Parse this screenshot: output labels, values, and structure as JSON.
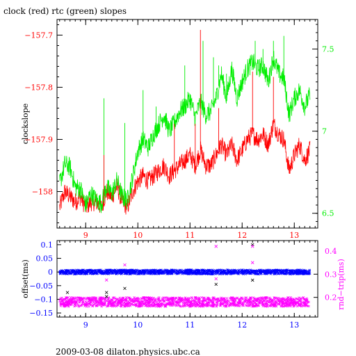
{
  "title": "clock (red) rtc (green) slopes",
  "footer": "2009-03-08 dilaton.physics.ubc.ca",
  "colors": {
    "red": "#ff0000",
    "green": "#00ee00",
    "blue": "#0000ff",
    "magenta": "#ff00ff",
    "axis": "#000000"
  },
  "chart_data": [
    {
      "type": "line",
      "ylabel": "clockslope",
      "xlim": [
        8.45,
        13.45
      ],
      "x_ticks": [
        9,
        10,
        11,
        12,
        13
      ],
      "x_tick_labels": [
        "9",
        "10",
        "11",
        "12",
        "13"
      ],
      "y_left": {
        "lim": [
          -158.07,
          -157.67
        ],
        "ticks": [
          -157.7,
          -157.8,
          -157.9,
          -158
        ],
        "tick_labels": [
          "−157.7",
          "−157.8",
          "−157.9",
          "−158"
        ]
      },
      "y_right": {
        "lim": [
          6.41,
          7.68
        ],
        "ticks": [
          6.5,
          7,
          7.5
        ],
        "tick_labels": [
          "6.5",
          "7",
          "7.5"
        ]
      },
      "series": [
        {
          "name": "clock (red)",
          "axis": "left",
          "color": "#ff0000",
          "x": [
            8.5,
            8.6,
            8.7,
            8.8,
            8.9,
            9.0,
            9.1,
            9.2,
            9.3,
            9.4,
            9.5,
            9.6,
            9.7,
            9.8,
            9.9,
            10.0,
            10.1,
            10.2,
            10.3,
            10.4,
            10.5,
            10.6,
            10.7,
            10.8,
            10.9,
            11.0,
            11.1,
            11.2,
            11.3,
            11.4,
            11.5,
            11.6,
            11.7,
            11.8,
            11.9,
            12.0,
            12.1,
            12.2,
            12.3,
            12.4,
            12.5,
            12.6,
            12.7,
            12.8,
            12.9,
            13.0,
            13.1,
            13.2,
            13.3
          ],
          "values": [
            -158.03,
            -158.0,
            -158.01,
            -158.02,
            -158.01,
            -158.03,
            -158.02,
            -158.02,
            -158.03,
            -158.0,
            -158.01,
            -157.99,
            -158.02,
            -158.03,
            -158.0,
            -157.98,
            -157.97,
            -157.98,
            -157.97,
            -157.96,
            -157.95,
            -157.97,
            -157.96,
            -157.95,
            -157.94,
            -157.93,
            -157.95,
            -157.92,
            -157.95,
            -157.95,
            -157.93,
            -157.91,
            -157.93,
            -157.91,
            -157.94,
            -157.92,
            -157.9,
            -157.89,
            -157.9,
            -157.89,
            -157.91,
            -157.87,
            -157.89,
            -157.9,
            -157.96,
            -157.93,
            -157.91,
            -157.94,
            -157.92
          ]
        },
        {
          "name": "rtc (green)",
          "axis": "right",
          "color": "#00ee00",
          "x": [
            8.5,
            8.6,
            8.7,
            8.8,
            8.9,
            9.0,
            9.1,
            9.2,
            9.3,
            9.4,
            9.5,
            9.6,
            9.7,
            9.8,
            9.9,
            10.0,
            10.1,
            10.2,
            10.3,
            10.4,
            10.5,
            10.6,
            10.7,
            10.8,
            10.9,
            11.0,
            11.1,
            11.2,
            11.3,
            11.4,
            11.5,
            11.6,
            11.7,
            11.8,
            11.9,
            12.0,
            12.1,
            12.2,
            12.3,
            12.4,
            12.5,
            12.6,
            12.7,
            12.8,
            12.9,
            13.0,
            13.1,
            13.2,
            13.3
          ],
          "values": [
            6.68,
            6.8,
            6.78,
            6.66,
            6.65,
            6.55,
            6.62,
            6.58,
            6.56,
            6.66,
            6.62,
            6.7,
            6.6,
            6.58,
            6.72,
            6.88,
            6.95,
            6.9,
            6.98,
            7.04,
            7.1,
            7.0,
            7.05,
            7.12,
            7.15,
            7.2,
            7.08,
            7.18,
            7.1,
            7.12,
            7.2,
            7.35,
            7.2,
            7.38,
            7.2,
            7.3,
            7.38,
            7.42,
            7.38,
            7.4,
            7.3,
            7.45,
            7.35,
            7.32,
            7.1,
            7.2,
            7.25,
            7.15,
            7.22
          ]
        }
      ],
      "spikes": [
        {
          "series": "rtc (green)",
          "x": [
            9.35,
            9.75,
            10.1,
            10.35,
            10.9,
            11.25,
            11.45,
            11.55,
            11.7,
            12.25,
            12.4,
            12.6,
            12.8
          ],
          "values": [
            7.2,
            7.05,
            7.25,
            7.15,
            7.4,
            7.55,
            7.45,
            7.4,
            7.35,
            7.55,
            7.5,
            7.55,
            7.58
          ]
        },
        {
          "series": "clock (red)",
          "x": [
            9.35,
            10.7,
            11.1,
            11.2,
            11.55,
            12.2,
            12.6
          ],
          "values": [
            -157.93,
            -157.87,
            -157.87,
            -157.69,
            -157.84,
            -157.77,
            -157.78
          ]
        }
      ]
    },
    {
      "type": "scatter",
      "ylabel_left": "offset(ms)",
      "ylabel_right": "rnd−trip(ms)",
      "xlim": [
        8.45,
        13.45
      ],
      "x_ticks": [
        9,
        10,
        11,
        12,
        13
      ],
      "x_tick_labels": [
        "9",
        "10",
        "11",
        "12",
        "13"
      ],
      "y_left": {
        "lim": [
          -0.165,
          0.115
        ],
        "ticks": [
          0.1,
          0.05,
          0,
          -0.05,
          -0.1,
          -0.15
        ],
        "tick_labels": [
          "0.1",
          "0.05",
          "0",
          "−0.05",
          "−0.1",
          "−0.15"
        ]
      },
      "y_right": {
        "lim": [
          0.115,
          0.445
        ],
        "ticks": [
          0.4,
          0.3,
          0.2
        ],
        "tick_labels": [
          "0.4",
          "0.3",
          "0.2"
        ]
      },
      "series": [
        {
          "name": "offset",
          "axis": "left",
          "color": "#0000ff",
          "x_range": [
            8.5,
            13.3
          ],
          "center": 0.0,
          "band": [
            -0.008,
            0.008
          ]
        },
        {
          "name": "rnd-trip",
          "axis": "right",
          "color": "#ff00ff",
          "x_range": [
            8.5,
            13.3
          ],
          "center": 0.178,
          "band": [
            0.16,
            0.2
          ]
        }
      ],
      "outliers": [
        {
          "series": "offset",
          "x": [
            8.65,
            9.4,
            9.4,
            9.75,
            11.5,
            12.2,
            12.2
          ],
          "values": [
            -0.075,
            -0.075,
            -0.09,
            -0.06,
            -0.045,
            0.1,
            -0.03
          ]
        },
        {
          "series": "rnd-trip",
          "x": [
            9.75,
            11.5,
            11.5,
            12.2,
            12.2,
            9.4
          ],
          "values": [
            0.34,
            0.42,
            0.28,
            0.42,
            0.35,
            0.275
          ]
        }
      ]
    }
  ]
}
